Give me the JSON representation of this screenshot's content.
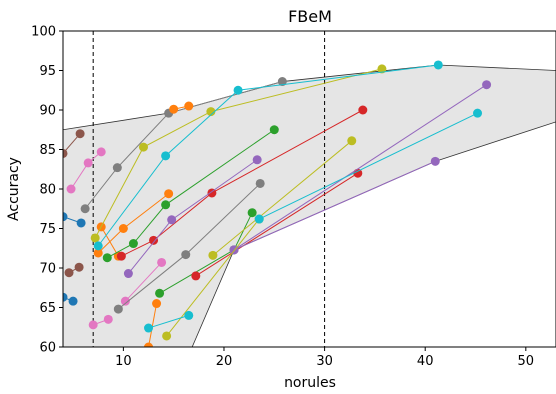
{
  "chart_data": {
    "type": "scatter",
    "title": "FBeM",
    "xlabel": "norules",
    "ylabel": "Accuracy",
    "xlim": [
      4,
      53
    ],
    "ylim": [
      60,
      100
    ],
    "xticks": [
      "10",
      "20",
      "30",
      "40",
      "50"
    ],
    "xtick_values": [
      10,
      20,
      30,
      40,
      50
    ],
    "yticks": [
      "60",
      "65",
      "70",
      "75",
      "80",
      "85",
      "90",
      "95",
      "100"
    ],
    "ytick_values": [
      60,
      65,
      70,
      75,
      80,
      85,
      90,
      95,
      100
    ],
    "vlines": [
      7,
      30
    ],
    "grid": false,
    "envelope": {
      "upper": [
        [
          4,
          87.5
        ],
        [
          14.5,
          89.6
        ],
        [
          25.8,
          93.6
        ],
        [
          41.3,
          95.7
        ],
        [
          53,
          95
        ]
      ],
      "lower": [
        [
          53,
          88.5
        ],
        [
          41,
          83.5
        ],
        [
          21,
          72.3
        ],
        [
          16.5,
          59
        ],
        [
          4,
          59
        ]
      ]
    },
    "series": [
      {
        "color": "#1f77b4",
        "points": [
          [
            4,
            76.5
          ],
          [
            5.8,
            75.7
          ]
        ]
      },
      {
        "color": "#1f77b4",
        "points": [
          [
            4,
            66.3
          ],
          [
            5,
            65.8
          ]
        ]
      },
      {
        "color": "#ff7f0e",
        "points": [
          [
            7.5,
            71.9
          ],
          [
            10,
            75
          ],
          [
            14.5,
            79.4
          ]
        ]
      },
      {
        "color": "#ff7f0e",
        "points": [
          [
            7.8,
            75.2
          ],
          [
            9.5,
            71.5
          ]
        ]
      },
      {
        "color": "#ff7f0e",
        "points": [
          [
            13.3,
            65.5
          ],
          [
            12.5,
            60
          ]
        ]
      },
      {
        "color": "#2ca02c",
        "points": [
          [
            8.4,
            71.3
          ],
          [
            11,
            73.1
          ],
          [
            14.2,
            78
          ],
          [
            25,
            87.5
          ]
        ]
      },
      {
        "color": "#2ca02c",
        "points": [
          [
            13.6,
            66.8
          ],
          [
            21,
            72.3
          ],
          [
            22.8,
            77
          ]
        ]
      },
      {
        "color": "#d62728",
        "points": [
          [
            9.8,
            71.5
          ],
          [
            13,
            73.5
          ],
          [
            18.8,
            79.5
          ],
          [
            33.8,
            90
          ]
        ]
      },
      {
        "color": "#d62728",
        "points": [
          [
            17.2,
            69
          ],
          [
            33.3,
            82
          ]
        ]
      },
      {
        "color": "#9467bd",
        "points": [
          [
            10.5,
            69.3
          ],
          [
            14.8,
            76.1
          ],
          [
            23.3,
            83.7
          ]
        ]
      },
      {
        "color": "#9467bd",
        "points": [
          [
            21,
            72.3
          ],
          [
            46.1,
            93.2
          ]
        ]
      },
      {
        "color": "#9467bd",
        "points": [
          [
            21,
            72.3
          ],
          [
            41,
            83.5
          ]
        ]
      },
      {
        "color": "#8c564b",
        "points": [
          [
            4,
            84.5
          ],
          [
            5.7,
            87
          ]
        ]
      },
      {
        "color": "#8c564b",
        "points": [
          [
            4.6,
            69.4
          ],
          [
            5.6,
            70.1
          ]
        ]
      },
      {
        "color": "#e377c2",
        "points": [
          [
            4.8,
            80
          ],
          [
            6.5,
            83.3
          ],
          [
            7.8,
            84.7
          ]
        ]
      },
      {
        "color": "#e377c2",
        "points": [
          [
            7,
            62.8
          ],
          [
            8.5,
            63.5
          ]
        ]
      },
      {
        "color": "#e377c2",
        "points": [
          [
            10.2,
            65.8
          ],
          [
            13.8,
            70.7
          ]
        ]
      },
      {
        "color": "#7f7f7f",
        "points": [
          [
            6.2,
            77.5
          ],
          [
            9.4,
            82.7
          ],
          [
            14.5,
            89.6
          ],
          [
            25.8,
            93.6
          ]
        ]
      },
      {
        "color": "#7f7f7f",
        "points": [
          [
            9.5,
            64.8
          ],
          [
            16.2,
            71.7
          ],
          [
            23.6,
            80.7
          ]
        ]
      },
      {
        "color": "#bcbd22",
        "points": [
          [
            7.2,
            73.8
          ],
          [
            12,
            85.3
          ],
          [
            18.7,
            89.8
          ],
          [
            35.7,
            95.2
          ]
        ]
      },
      {
        "color": "#bcbd22",
        "points": [
          [
            18.9,
            71.6
          ],
          [
            32.7,
            86.1
          ]
        ]
      },
      {
        "color": "#bcbd22",
        "points": [
          [
            14.3,
            61.4
          ],
          [
            23.5,
            76.2
          ]
        ]
      },
      {
        "color": "#17becf",
        "points": [
          [
            7.5,
            72.8
          ],
          [
            14.2,
            84.2
          ],
          [
            21.4,
            92.5
          ],
          [
            41.3,
            95.7
          ]
        ]
      },
      {
        "color": "#17becf",
        "points": [
          [
            12.5,
            62.4
          ],
          [
            16.5,
            64
          ]
        ]
      },
      {
        "color": "#17becf",
        "points": [
          [
            23.5,
            76.2
          ],
          [
            45.2,
            89.6
          ]
        ]
      },
      {
        "color": "#ff7f0e",
        "points": [
          [
            15,
            90.1
          ],
          [
            16.5,
            90.5
          ]
        ]
      }
    ]
  }
}
